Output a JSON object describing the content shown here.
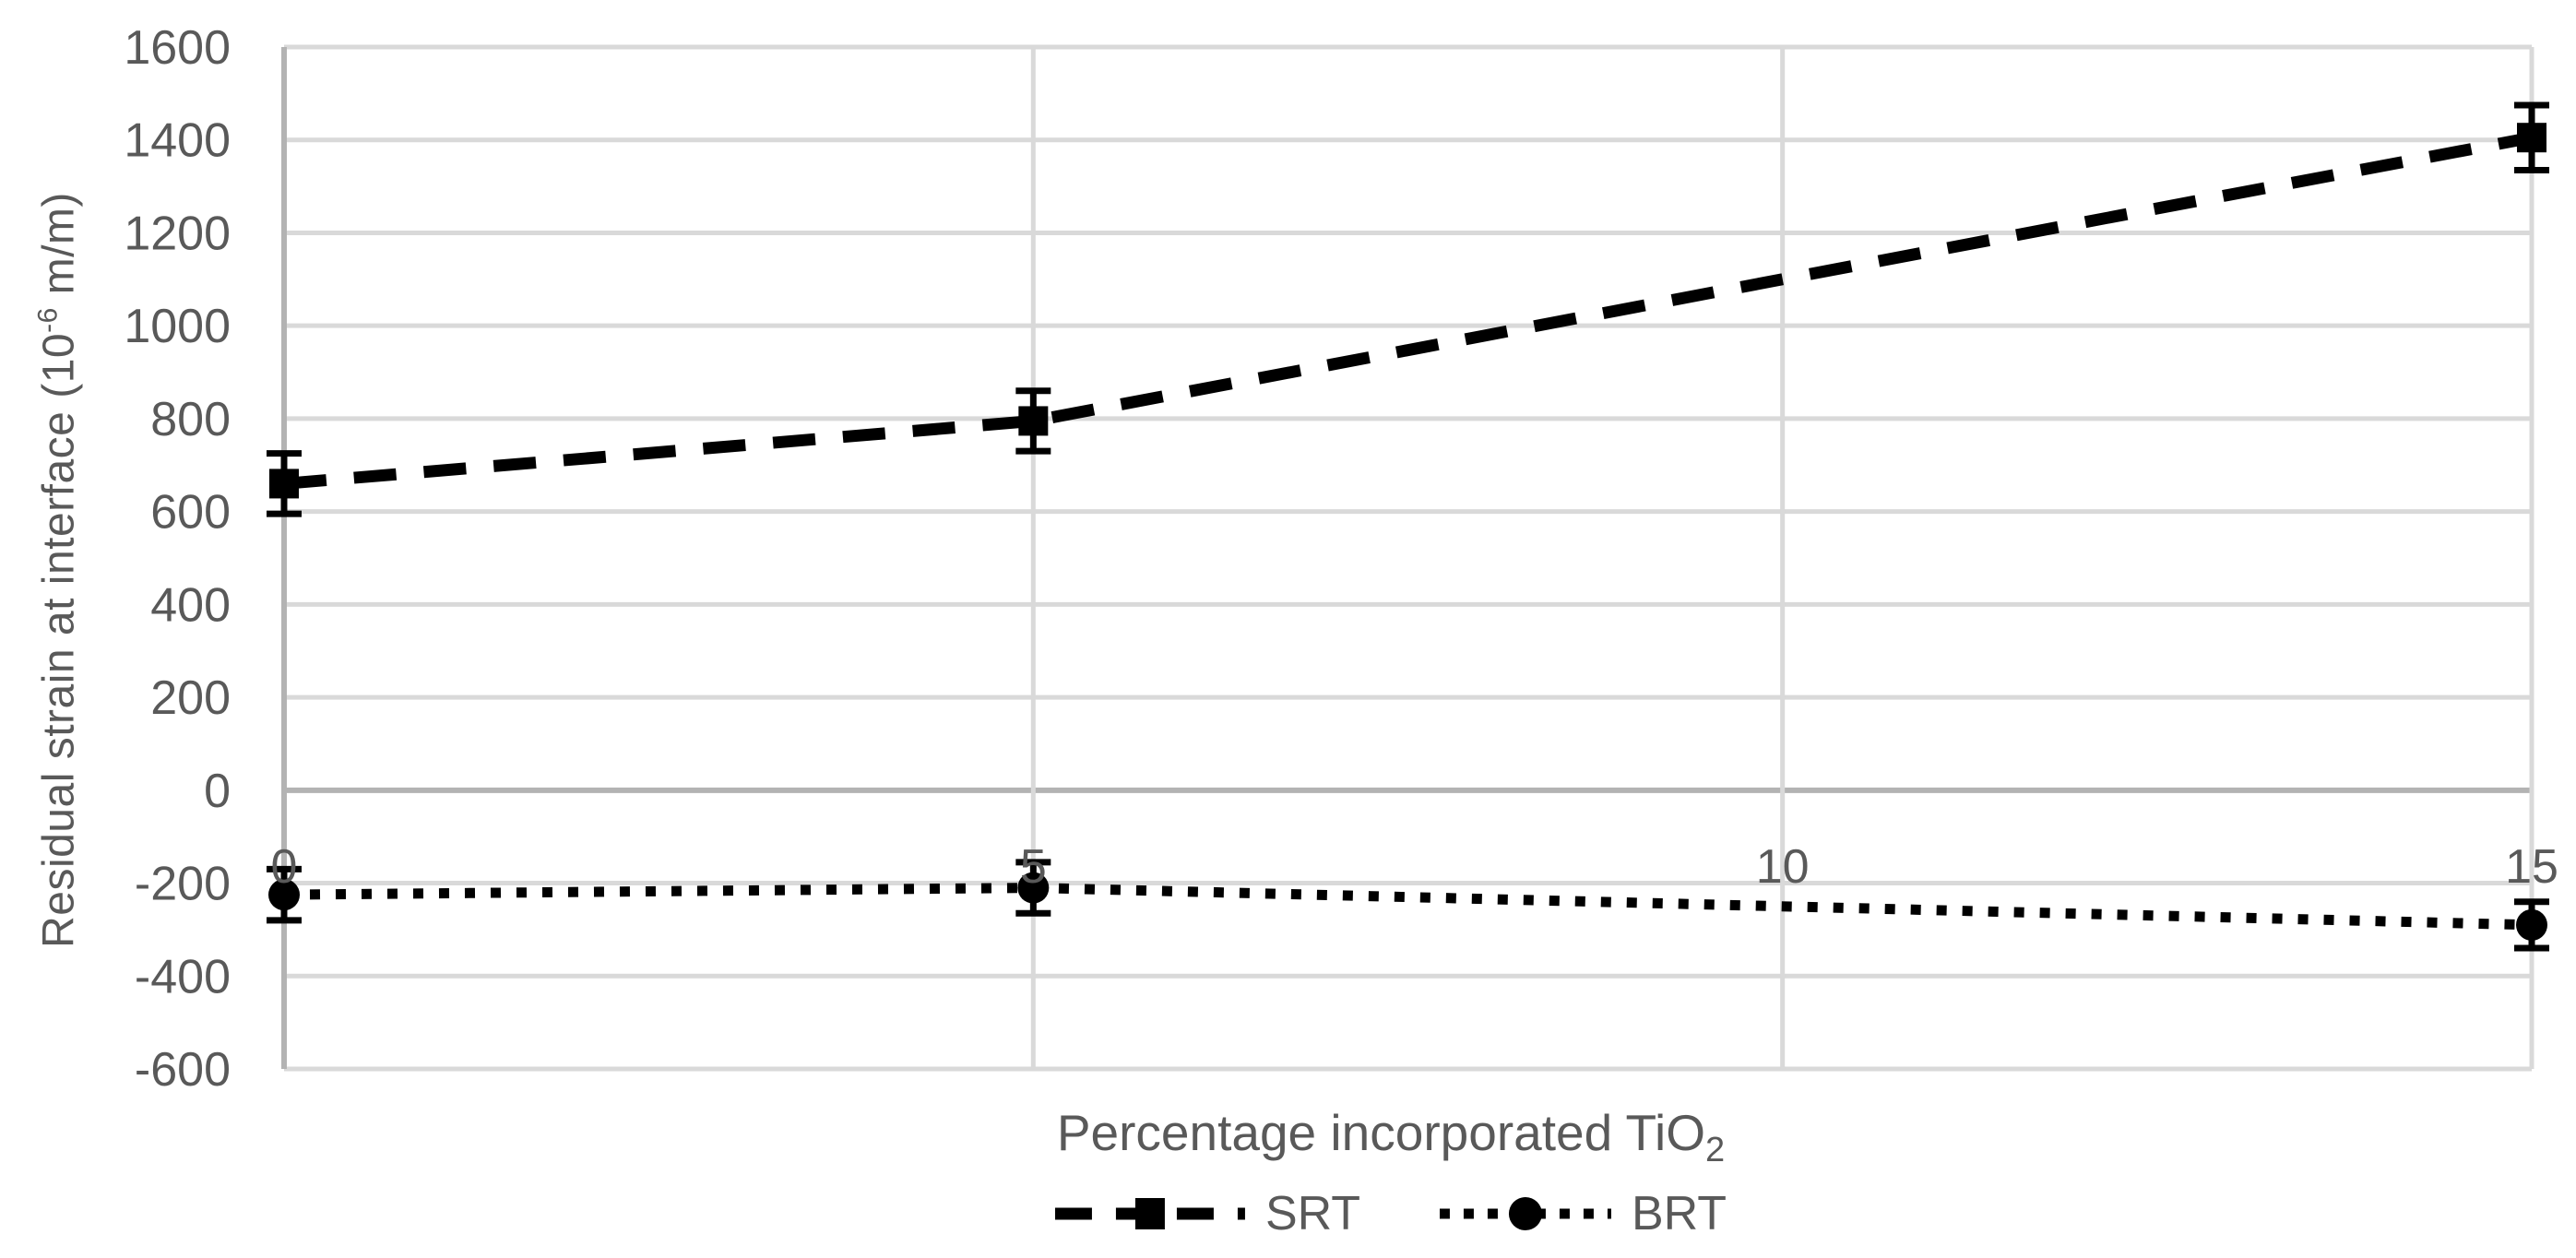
{
  "chart_data": {
    "type": "line",
    "title": "",
    "xlabel": "Percentage incorporated TiO₂",
    "ylabel": "Residual strain at interface (10⁻⁶ m/m)",
    "xlim": [
      0,
      15
    ],
    "ylim": [
      -600,
      1600
    ],
    "xticks": [
      0,
      5,
      10,
      15
    ],
    "yticks": [
      1600,
      1400,
      1200,
      1000,
      800,
      600,
      400,
      200,
      0,
      -200,
      -400,
      -600
    ],
    "grid": true,
    "legend_position": "bottom-center",
    "series": [
      {
        "name": "SRT",
        "line_style": "dashed",
        "marker": "square",
        "x": [
          0,
          5,
          15
        ],
        "y": [
          660,
          795,
          1405
        ],
        "y_err": [
          65,
          65,
          70
        ]
      },
      {
        "name": "BRT",
        "line_style": "dotted",
        "marker": "circle",
        "x": [
          0,
          5,
          15
        ],
        "y": [
          -225,
          -210,
          -290
        ],
        "y_err": [
          55,
          55,
          50
        ]
      }
    ]
  },
  "labels": {
    "x_title": {
      "main": "Percentage incorporated TiO",
      "sub": "2"
    },
    "y_title": {
      "main": "Residual strain at interface (10",
      "sup": "-6",
      "end": " m/m)"
    }
  },
  "colors": {
    "series": "#000000",
    "text": "#595959",
    "gridline": "#d9d9d9",
    "axis_line": "#b3b3b3",
    "background": "#ffffff"
  }
}
